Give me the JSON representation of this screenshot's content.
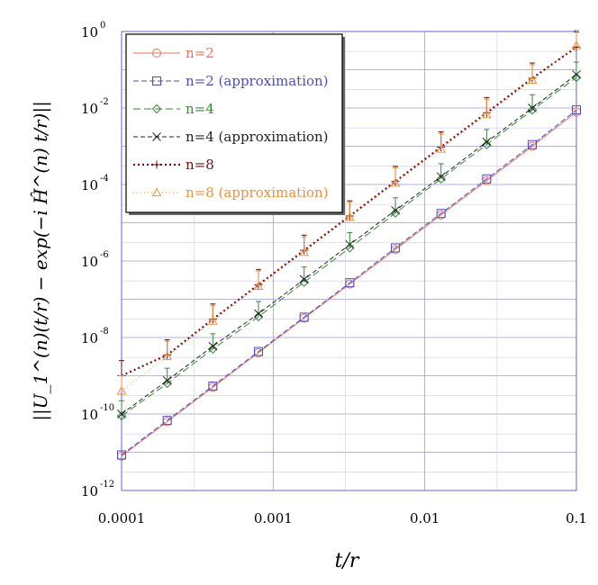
{
  "chart_data": {
    "type": "line",
    "title": "",
    "xlabel": "t/r",
    "ylabel": "||U_1^(n)(t/r) − exp(−i Ĥ^(n) t/r)||",
    "x_scale": "log",
    "y_scale": "log",
    "xlim": [
      0.0001,
      0.1
    ],
    "ylim": [
      1e-12,
      1
    ],
    "grid": true,
    "legend_position": "top-left",
    "x_ticks": [
      {
        "value": 0.0001,
        "label": "0.0001"
      },
      {
        "value": 0.001,
        "label": "0.001"
      },
      {
        "value": 0.01,
        "label": "0.01"
      },
      {
        "value": 0.1,
        "label": "0.1"
      }
    ],
    "y_ticks": [
      {
        "value": 1e-12,
        "base": "10",
        "exp": "-12"
      },
      {
        "value": 1e-10,
        "base": "10",
        "exp": "-10"
      },
      {
        "value": 1e-08,
        "base": "10",
        "exp": "-8"
      },
      {
        "value": 1e-06,
        "base": "10",
        "exp": "-6"
      },
      {
        "value": 0.0001,
        "base": "10",
        "exp": "-4"
      },
      {
        "value": 0.01,
        "base": "10",
        "exp": "-2"
      },
      {
        "value": 1,
        "base": "10",
        "exp": "0"
      }
    ],
    "x": [
      0.0001,
      0.0002,
      0.0004,
      0.0008,
      0.0016,
      0.0032,
      0.0064,
      0.0128,
      0.0256,
      0.0512,
      0.1
    ],
    "series": [
      {
        "name": "n=2",
        "color": "#e8735a",
        "marker": "circle",
        "dash": "",
        "error_bars": false,
        "values": [
          7.9e-12,
          6.3e-11,
          5e-10,
          4e-09,
          3.2e-08,
          2.5e-07,
          2e-06,
          1.6e-05,
          0.000126,
          0.001,
          0.0079
        ]
      },
      {
        "name": "n=2 (approximation)",
        "color": "#4b4bc8",
        "marker": "square",
        "dash": "6,3",
        "error_bars": false,
        "values": [
          8.5e-12,
          6.8e-11,
          5.4e-10,
          4.3e-09,
          3.4e-08,
          2.7e-07,
          2.2e-06,
          1.75e-05,
          0.00014,
          0.0011,
          0.0089
        ]
      },
      {
        "name": "n=4",
        "color": "#3a8a3a",
        "marker": "diamond",
        "dash": "8,4",
        "error_bars": true,
        "values": [
          8.9e-11,
          6.3e-10,
          5e-09,
          3.5e-08,
          2.8e-07,
          2.2e-06,
          1.8e-05,
          0.00014,
          0.0011,
          0.0089,
          0.063
        ]
      },
      {
        "name": "n=4 (approximation)",
        "color": "#222222",
        "marker": "x",
        "dash": "5,3",
        "error_bars": false,
        "values": [
          1e-10,
          7.5e-10,
          5.9e-09,
          4.2e-08,
          3.3e-07,
          2.7e-06,
          2.1e-05,
          0.00016,
          0.0013,
          0.01,
          0.075
        ]
      },
      {
        "name": "n=8",
        "color": "#6e1010",
        "marker": "plus",
        "dash": "2,3",
        "error_bars": true,
        "values": [
          1e-09,
          3.5e-09,
          3e-08,
          2.4e-07,
          1.9e-06,
          1.5e-05,
          0.00012,
          0.00095,
          0.0075,
          0.06,
          0.39
        ]
      },
      {
        "name": "n=8 (approximation)",
        "color": "#f0903a",
        "marker": "triangle",
        "dash": "1,3",
        "error_bars": true,
        "values": [
          4e-10,
          3.2e-09,
          2.7e-08,
          2.2e-07,
          1.7e-06,
          1.4e-05,
          0.00011,
          0.00085,
          0.0068,
          0.054,
          0.43
        ]
      }
    ]
  }
}
